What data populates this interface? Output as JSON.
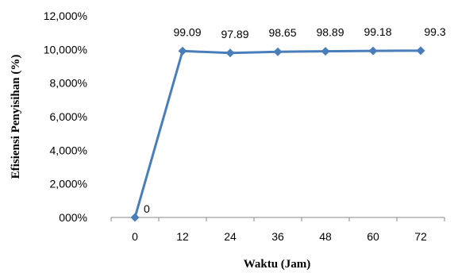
{
  "chart_data": {
    "type": "line",
    "title": "",
    "xlabel": "Waktu (Jam)",
    "ylabel": "Efisiensi Penyisihan (%)",
    "categories": [
      "0",
      "12",
      "24",
      "36",
      "48",
      "60",
      "72"
    ],
    "y_tick_labels": [
      "000%",
      "2,000%",
      "4,000%",
      "6,000%",
      "8,000%",
      "10,000%",
      "12,000%"
    ],
    "ylim": [
      0,
      120
    ],
    "series": [
      {
        "values": [
          0,
          99.09,
          97.89,
          98.65,
          98.89,
          99.18,
          99.3
        ],
        "data_labels": [
          "0",
          "99.09",
          "97.89",
          "98.65",
          "98.89",
          "99.18",
          "99.3"
        ],
        "color": "#4a7ebb",
        "marker": "diamond"
      }
    ],
    "grid": false,
    "legend": "none"
  }
}
